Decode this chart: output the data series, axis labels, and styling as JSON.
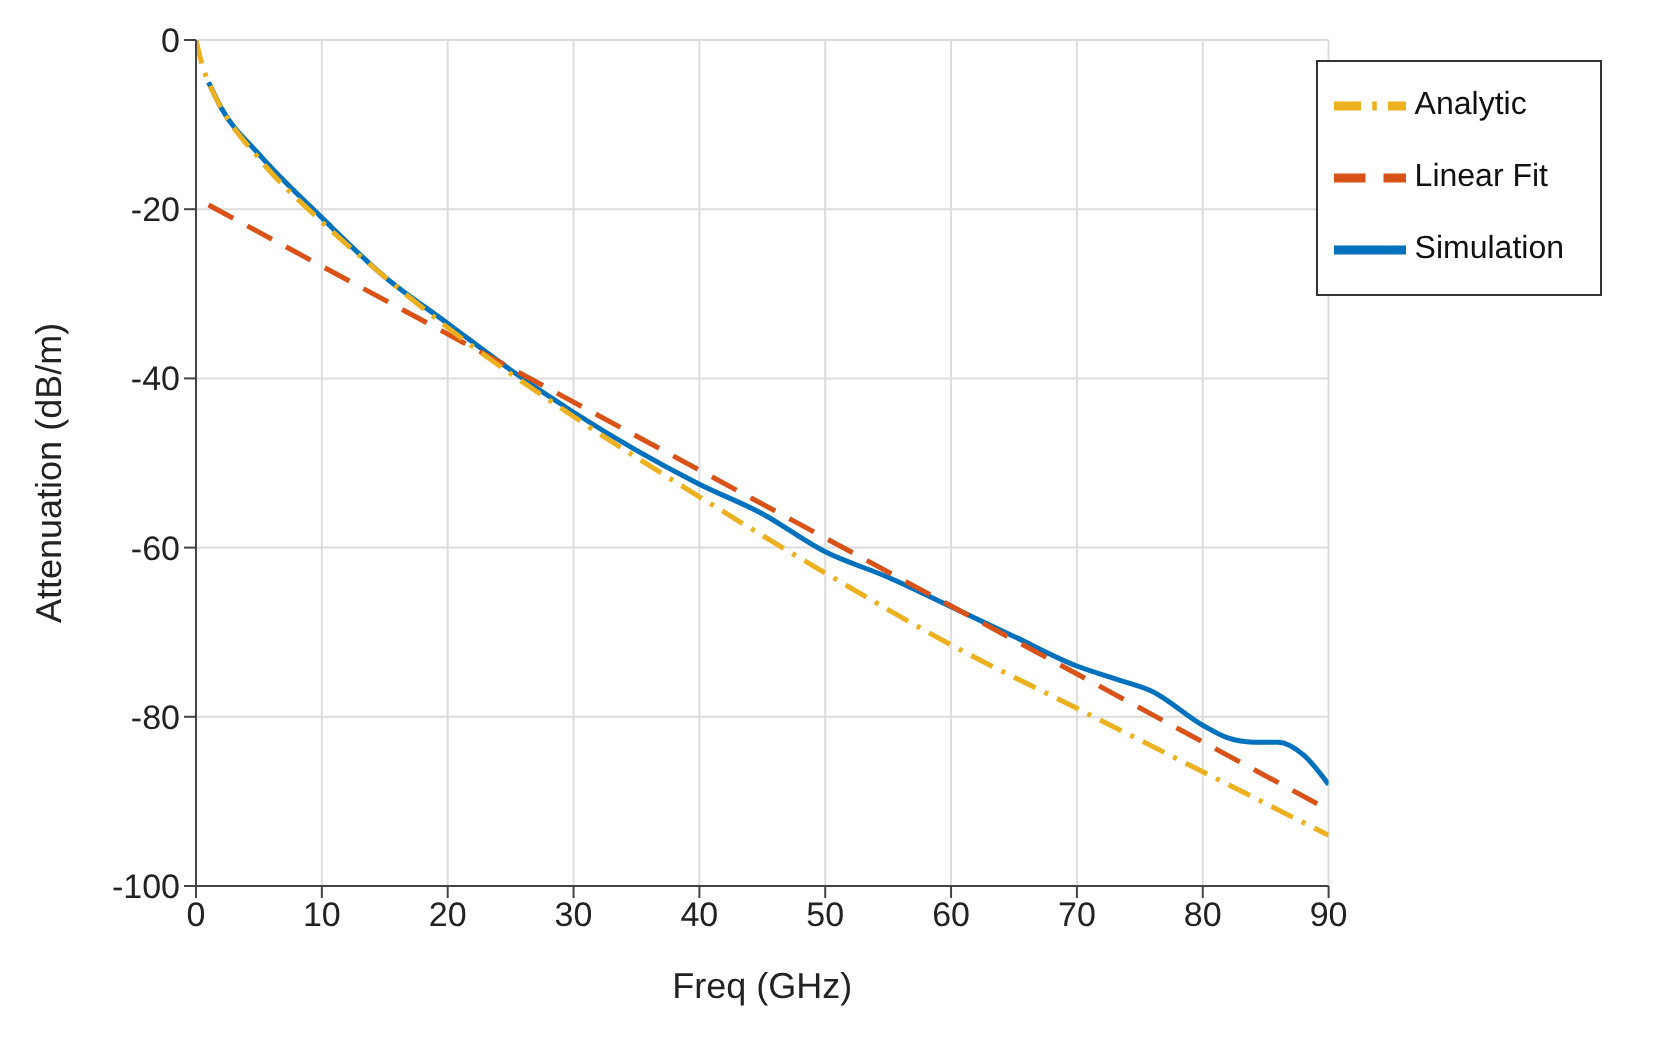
{
  "chart_data": {
    "type": "line",
    "xlabel": "Freq (GHz)",
    "ylabel": "Attenuation (dB/m)",
    "xlim": [
      0,
      90
    ],
    "xticks": [
      0,
      10,
      20,
      30,
      40,
      50,
      60,
      70,
      80,
      90
    ],
    "ylim": [
      -100,
      0
    ],
    "yticks": [
      -100,
      -80,
      -60,
      -40,
      -20,
      0
    ],
    "grid": true,
    "legend": "top right",
    "marker": "none",
    "series": [
      {
        "name": "Simulation",
        "color": "#0072bd",
        "line_style": "solid",
        "x": [
          1,
          2,
          5,
          10,
          15,
          20,
          25,
          30,
          35,
          40,
          45,
          50,
          55,
          60,
          65,
          70,
          73,
          76,
          80,
          82,
          84,
          86,
          88,
          90
        ],
        "values": [
          -5,
          -8,
          -13.5,
          -21,
          -28,
          -33.5,
          -39,
          -44,
          -48.5,
          -52.5,
          -56,
          -60.5,
          -63.5,
          -67,
          -70.5,
          -74,
          -75.5,
          -77,
          -81,
          -82.5,
          -83,
          -83,
          -84.5,
          -88
        ]
      },
      {
        "name": "Linear Fit",
        "color": "#d95319",
        "line_style": "dashed",
        "x": [
          1,
          90
        ],
        "values": [
          -19.5,
          -91
        ]
      },
      {
        "name": "Analytic",
        "color": "#edb120",
        "line_style": "dashdot",
        "x": [
          0,
          0.5,
          1,
          2,
          5,
          10,
          15,
          20,
          30,
          40,
          50,
          60,
          70,
          80,
          90
        ],
        "values": [
          0,
          -3,
          -5,
          -8,
          -14,
          -21.5,
          -28,
          -34,
          -44.5,
          -54,
          -63,
          -71.5,
          -79,
          -86.5,
          -94
        ]
      }
    ]
  }
}
